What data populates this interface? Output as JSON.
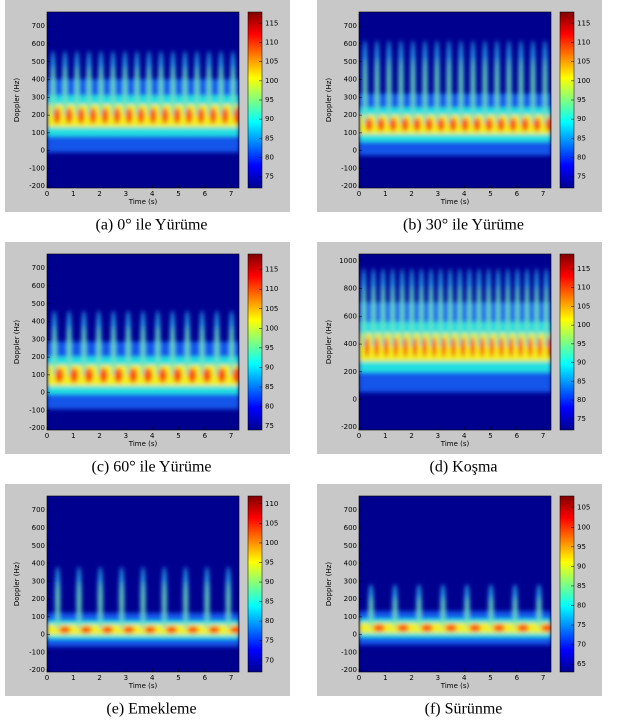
{
  "panels": [
    {
      "caption": "(a) 0° ile Yürüme",
      "xlabel": "Time (s)",
      "ylabel": "Doppler (Hz)",
      "xlim": [
        0,
        7.3
      ],
      "xticks": [
        0,
        1,
        2,
        3,
        4,
        5,
        6,
        7
      ],
      "ylim": [
        -210,
        780
      ],
      "yticks": [
        -200,
        -100,
        0,
        100,
        200,
        300,
        400,
        500,
        600,
        700
      ],
      "clim": [
        72,
        118
      ],
      "cticks": [
        75,
        80,
        85,
        90,
        95,
        100,
        105,
        110,
        115
      ]
    },
    {
      "caption": "(b) 30° ile Yürüme",
      "xlabel": "Time (s)",
      "ylabel": "Doppler (Hz)",
      "xlim": [
        0,
        7.3
      ],
      "xticks": [
        0,
        1,
        2,
        3,
        4,
        5,
        6,
        7
      ],
      "ylim": [
        -210,
        780
      ],
      "yticks": [
        -200,
        -100,
        0,
        100,
        200,
        300,
        400,
        500,
        600,
        700
      ],
      "clim": [
        72,
        118
      ],
      "cticks": [
        75,
        80,
        85,
        90,
        95,
        100,
        105,
        110,
        115
      ]
    },
    {
      "caption": "(c) 60° ile Yürüme",
      "xlabel": "Time (s)",
      "ylabel": "Doppler (Hz)",
      "xlim": [
        0,
        7.3
      ],
      "xticks": [
        0,
        1,
        2,
        3,
        4,
        5,
        6,
        7
      ],
      "ylim": [
        -210,
        780
      ],
      "yticks": [
        -200,
        -100,
        0,
        100,
        200,
        300,
        400,
        500,
        600,
        700
      ],
      "clim": [
        74,
        119
      ],
      "cticks": [
        75,
        80,
        85,
        90,
        95,
        100,
        105,
        110,
        115
      ]
    },
    {
      "caption": "(d) Koşma",
      "xlabel": "Time (s)",
      "ylabel": "Doppler (Hz)",
      "xlim": [
        0,
        7.3
      ],
      "xticks": [
        0,
        1,
        2,
        3,
        4,
        5,
        6,
        7
      ],
      "ylim": [
        -220,
        1050
      ],
      "yticks": [
        -200,
        0,
        200,
        400,
        600,
        800,
        1000
      ],
      "clim": [
        72,
        119
      ],
      "cticks": [
        75,
        80,
        85,
        90,
        95,
        100,
        105,
        110,
        115
      ]
    },
    {
      "caption": "(e) Emekleme",
      "xlabel": "Time (s)",
      "ylabel": "Doppler (Hz)",
      "xlim": [
        0,
        7.3
      ],
      "xticks": [
        0,
        1,
        2,
        3,
        4,
        5,
        6,
        7
      ],
      "ylim": [
        -210,
        780
      ],
      "yticks": [
        -200,
        -100,
        0,
        100,
        200,
        300,
        400,
        500,
        600,
        700
      ],
      "clim": [
        67,
        112
      ],
      "cticks": [
        70,
        75,
        80,
        85,
        90,
        95,
        100,
        105,
        110
      ]
    },
    {
      "caption": "(f) Sürünme",
      "xlabel": "Time (s)",
      "ylabel": "Doppler (Hz)",
      "xlim": [
        0,
        7.3
      ],
      "xticks": [
        0,
        1,
        2,
        3,
        4,
        5,
        6,
        7
      ],
      "ylim": [
        -210,
        780
      ],
      "yticks": [
        -200,
        -100,
        0,
        100,
        200,
        300,
        400,
        500,
        600,
        700
      ],
      "clim": [
        63,
        108
      ],
      "cticks": [
        65,
        70,
        75,
        80,
        85,
        90,
        95,
        100,
        105
      ]
    }
  ]
}
